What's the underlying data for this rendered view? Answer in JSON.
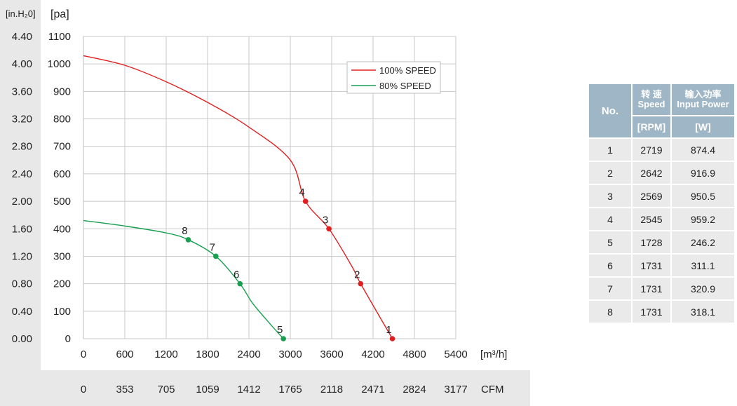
{
  "chart_data": {
    "type": "line",
    "y_left_label": "[in.H₂0]",
    "y_right_label": "[pa]",
    "x_unit_label": "[m³/h]",
    "x_alt_unit_label": "CFM",
    "x_ticks": [
      0,
      600,
      1200,
      1800,
      2400,
      3000,
      3600,
      4200,
      4800,
      5400
    ],
    "x_alt_ticks": [
      "0",
      "353",
      "705",
      "1059",
      "1412",
      "1765",
      "2118",
      "2471",
      "2824",
      "3177"
    ],
    "y_pa_ticks": [
      0,
      100,
      200,
      300,
      400,
      500,
      600,
      700,
      800,
      900,
      1000,
      1100
    ],
    "y_inh2o_ticks": [
      "0.00",
      "0.40",
      "0.80",
      "1.20",
      "1.60",
      "2.00",
      "2.40",
      "2.80",
      "3.20",
      "3.60",
      "4.00",
      "4.40"
    ],
    "xlim": [
      0,
      5400
    ],
    "ylim": [
      0,
      1100
    ],
    "grid": true,
    "legend_position": "top-right",
    "series": [
      {
        "name": "100% SPEED",
        "color": "#e02020",
        "curve": [
          [
            0,
            1030
          ],
          [
            600,
            995
          ],
          [
            1200,
            935
          ],
          [
            1800,
            860
          ],
          [
            2400,
            770
          ],
          [
            3000,
            650
          ],
          [
            3220,
            500
          ],
          [
            3560,
            400
          ],
          [
            3900,
            260
          ],
          [
            4020,
            200
          ],
          [
            4480,
            0
          ]
        ],
        "points": [
          {
            "label": "1",
            "x": 4480,
            "y": 0
          },
          {
            "label": "2",
            "x": 4020,
            "y": 200
          },
          {
            "label": "3",
            "x": 3560,
            "y": 400
          },
          {
            "label": "4",
            "x": 3220,
            "y": 500
          }
        ]
      },
      {
        "name": "80%   SPEED",
        "color": "#17a050",
        "curve": [
          [
            0,
            430
          ],
          [
            600,
            410
          ],
          [
            1200,
            385
          ],
          [
            1520,
            360
          ],
          [
            1920,
            300
          ],
          [
            2270,
            200
          ],
          [
            2450,
            130
          ],
          [
            2720,
            50
          ],
          [
            2900,
            0
          ]
        ],
        "points": [
          {
            "label": "5",
            "x": 2900,
            "y": 0
          },
          {
            "label": "6",
            "x": 2270,
            "y": 200
          },
          {
            "label": "7",
            "x": 1920,
            "y": 300
          },
          {
            "label": "8",
            "x": 1520,
            "y": 360
          }
        ]
      }
    ]
  },
  "table": {
    "header_no": "No.",
    "header_speed_cn": "转 速",
    "header_speed_en": "Speed",
    "header_power_cn": "输入功率",
    "header_power_en": "Input Power",
    "unit_speed": "[RPM]",
    "unit_power": "[W]",
    "rows": [
      {
        "no": "1",
        "speed": "2719",
        "power": "874.4"
      },
      {
        "no": "2",
        "speed": "2642",
        "power": "916.9"
      },
      {
        "no": "3",
        "speed": "2569",
        "power": "950.5"
      },
      {
        "no": "4",
        "speed": "2545",
        "power": "959.2"
      },
      {
        "no": "5",
        "speed": "1728",
        "power": "246.2"
      },
      {
        "no": "6",
        "speed": "1731",
        "power": "311.1"
      },
      {
        "no": "7",
        "speed": "1731",
        "power": "320.9"
      },
      {
        "no": "8",
        "speed": "1731",
        "power": "318.1"
      }
    ]
  }
}
